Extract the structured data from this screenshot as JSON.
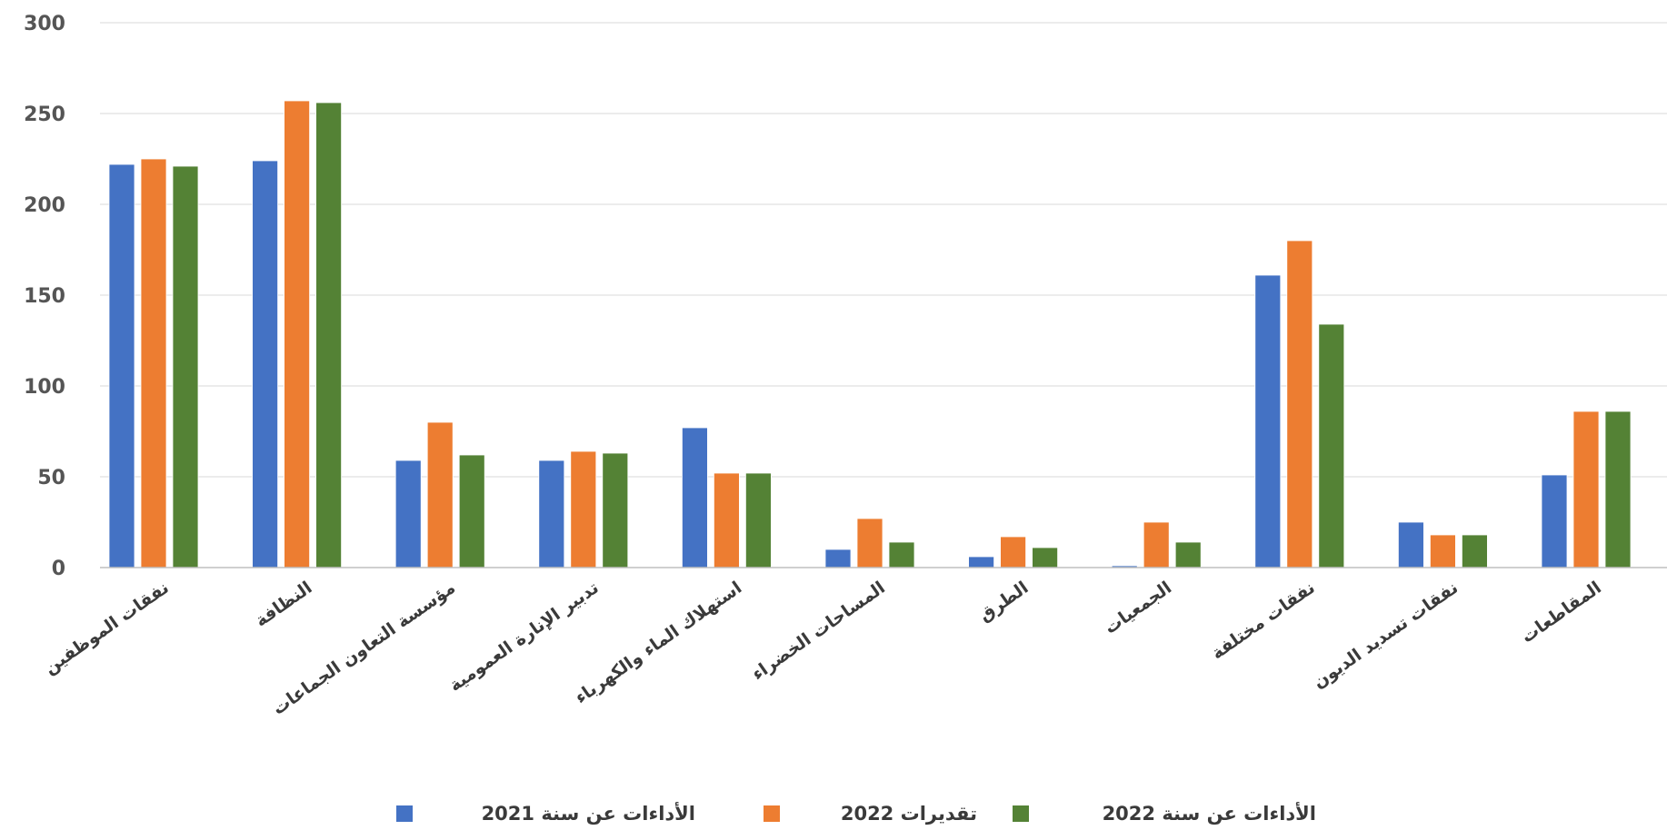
{
  "chart_data": {
    "type": "bar",
    "title": "",
    "xlabel": "",
    "ylabel": "",
    "ylim": [
      0,
      300
    ],
    "yticks": [
      "0",
      "50",
      "100",
      "150",
      "200",
      "250",
      "300"
    ],
    "grid": true,
    "legend_position": "bottom",
    "categories": [
      "نفقات الموظفين",
      "النظافة",
      "مؤسسة التعاون الجماعات",
      "تدبير الإنارة العمومية",
      "استهلاك الماء والكهرباء",
      "المساحات الخضراء",
      "الطرق",
      "الجمعيات",
      "نفقات مختلفة",
      "نفقات تسديد الديون",
      "المقاطعات"
    ],
    "series": [
      {
        "name": "الأداءات عن سنة 2021",
        "color": "#4472C4",
        "values": [
          222,
          224,
          59,
          59,
          77,
          10,
          6,
          1,
          161,
          25,
          51
        ]
      },
      {
        "name": "تقديرات 2022",
        "color": "#ED7D31",
        "values": [
          225,
          257,
          80,
          64,
          52,
          27,
          17,
          25,
          180,
          18,
          86
        ]
      },
      {
        "name": "الأداءات عن سنة 2022",
        "color": "#548235",
        "values": [
          221,
          256,
          62,
          63,
          52,
          14,
          11,
          14,
          134,
          18,
          86
        ]
      }
    ]
  }
}
